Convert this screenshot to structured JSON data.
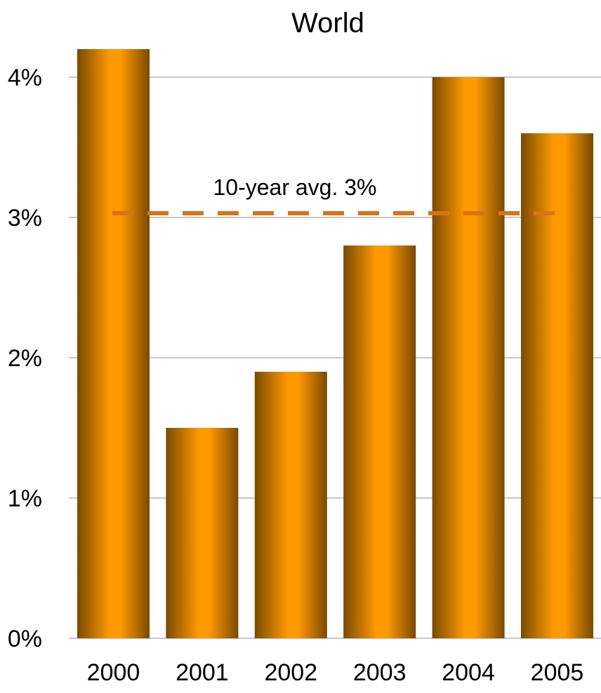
{
  "chart_data": {
    "type": "bar",
    "title": "World",
    "xlabel": "",
    "ylabel": "",
    "categories": [
      "2000",
      "2001",
      "2002",
      "2003",
      "2004",
      "2005"
    ],
    "values": [
      4.2,
      1.5,
      1.9,
      2.8,
      4.0,
      3.6
    ],
    "ylim": [
      0,
      4
    ],
    "yticks": [
      0,
      1,
      2,
      3,
      4
    ],
    "ytick_labels": [
      "0%",
      "1%",
      "2%",
      "3%",
      "4%"
    ],
    "grid": true,
    "reference_line": {
      "value": 3.03,
      "label": "10-year avg. 3%",
      "style": "dashed"
    },
    "colors": {
      "bar_edge": "#7a4a00",
      "bar_center": "#ff9900",
      "reference_line": "#d9731a"
    }
  }
}
